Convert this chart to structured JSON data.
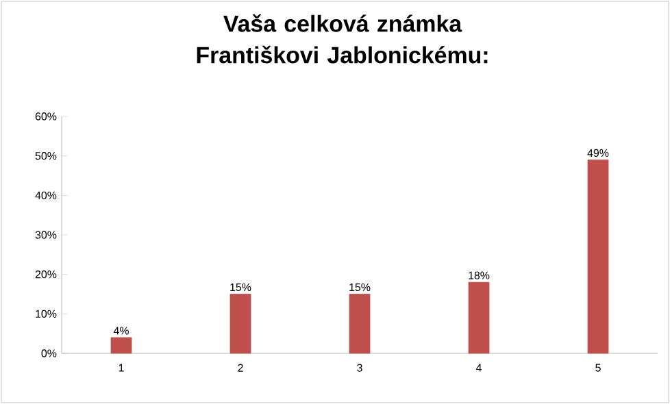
{
  "chart_data": {
    "type": "bar",
    "title": "Vaša celková známka Františkovi Jablonickému:",
    "categories": [
      "1",
      "2",
      "3",
      "4",
      "5"
    ],
    "values": [
      4,
      15,
      15,
      18,
      49
    ],
    "value_labels": [
      "4%",
      "15%",
      "15%",
      "18%",
      "49%"
    ],
    "color": "#c0504d",
    "ylim": [
      0,
      60
    ],
    "yticks": [
      {
        "value": 0,
        "label": "0%"
      },
      {
        "value": 10,
        "label": "10%"
      },
      {
        "value": 20,
        "label": "20%"
      },
      {
        "value": 30,
        "label": "30%"
      },
      {
        "value": 40,
        "label": "40%"
      },
      {
        "value": 50,
        "label": "50%"
      },
      {
        "value": 60,
        "label": "60%"
      }
    ],
    "grid": false
  }
}
